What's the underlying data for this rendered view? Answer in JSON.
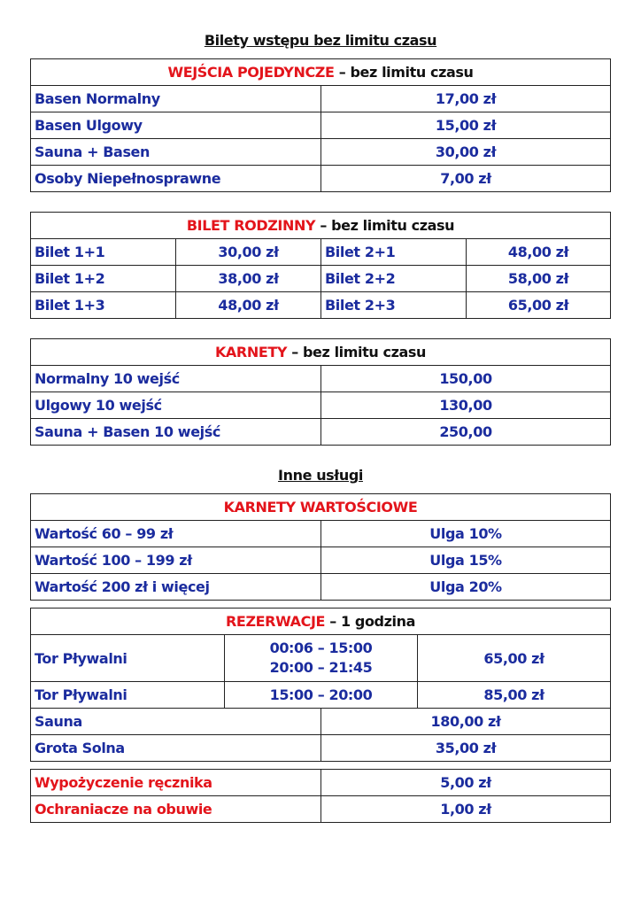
{
  "title": "Bilety wstępu bez limitu czasu",
  "single": {
    "header_red": "WEJŚCIA POJEDYNCZE",
    "header_rest": " – bez limitu czasu",
    "rows": [
      {
        "label": "Basen Normalny",
        "price": "17,00 zł"
      },
      {
        "label": "Basen Ulgowy",
        "price": "15,00 zł"
      },
      {
        "label": "Sauna + Basen",
        "price": "30,00 zł"
      },
      {
        "label": "Osoby Niepełnosprawne",
        "price": "7,00 zł"
      }
    ]
  },
  "family": {
    "header_red": "BILET RODZINNY",
    "header_rest": " – bez limitu czasu",
    "rows": [
      {
        "a": "Bilet 1+1",
        "ap": "30,00 zł",
        "b": "Bilet 2+1",
        "bp": "48,00 zł"
      },
      {
        "a": "Bilet 1+2",
        "ap": "38,00 zł",
        "b": "Bilet 2+2",
        "bp": "58,00 zł"
      },
      {
        "a": "Bilet 1+3",
        "ap": "48,00 zł",
        "b": "Bilet 2+3",
        "bp": "65,00 zł"
      }
    ]
  },
  "passes": {
    "header_red": "KARNETY",
    "header_rest": " – bez limitu czasu",
    "rows": [
      {
        "label": "Normalny 10 wejść",
        "price": "150,00"
      },
      {
        "label": "Ulgowy 10 wejść",
        "price": "130,00"
      },
      {
        "label": "Sauna + Basen 10 wejść",
        "price": "250,00"
      }
    ]
  },
  "other_title": "Inne usługi",
  "value_passes": {
    "header_red": "KARNETY WARTOŚCIOWE",
    "rows": [
      {
        "label": "Wartość 60 – 99 zł",
        "price": "Ulga 10%"
      },
      {
        "label": "Wartość 100 – 199 zł",
        "price": "Ulga 15%"
      },
      {
        "label": "Wartość 200 zł i więcej",
        "price": "Ulga 20%"
      }
    ]
  },
  "reservations": {
    "header_red": "REZERWACJE",
    "header_rest": " – 1 godzina",
    "lane1": {
      "label": "Tor Pływalni",
      "time1": "00:06 – 15:00",
      "time2": "20:00 – 21:45",
      "price": "65,00 zł"
    },
    "lane2": {
      "label": "Tor Pływalni",
      "time": "15:00 – 20:00",
      "price": "85,00 zł"
    },
    "sauna": {
      "label": "Sauna",
      "price": "180,00 zł"
    },
    "grotto": {
      "label": "Grota Solna",
      "price": "35,00 zł"
    }
  },
  "extras": [
    {
      "label": "Wypożyczenie ręcznika",
      "price": "5,00 zł"
    },
    {
      "label": "Ochraniacze na obuwie",
      "price": "1,00 zł"
    }
  ]
}
